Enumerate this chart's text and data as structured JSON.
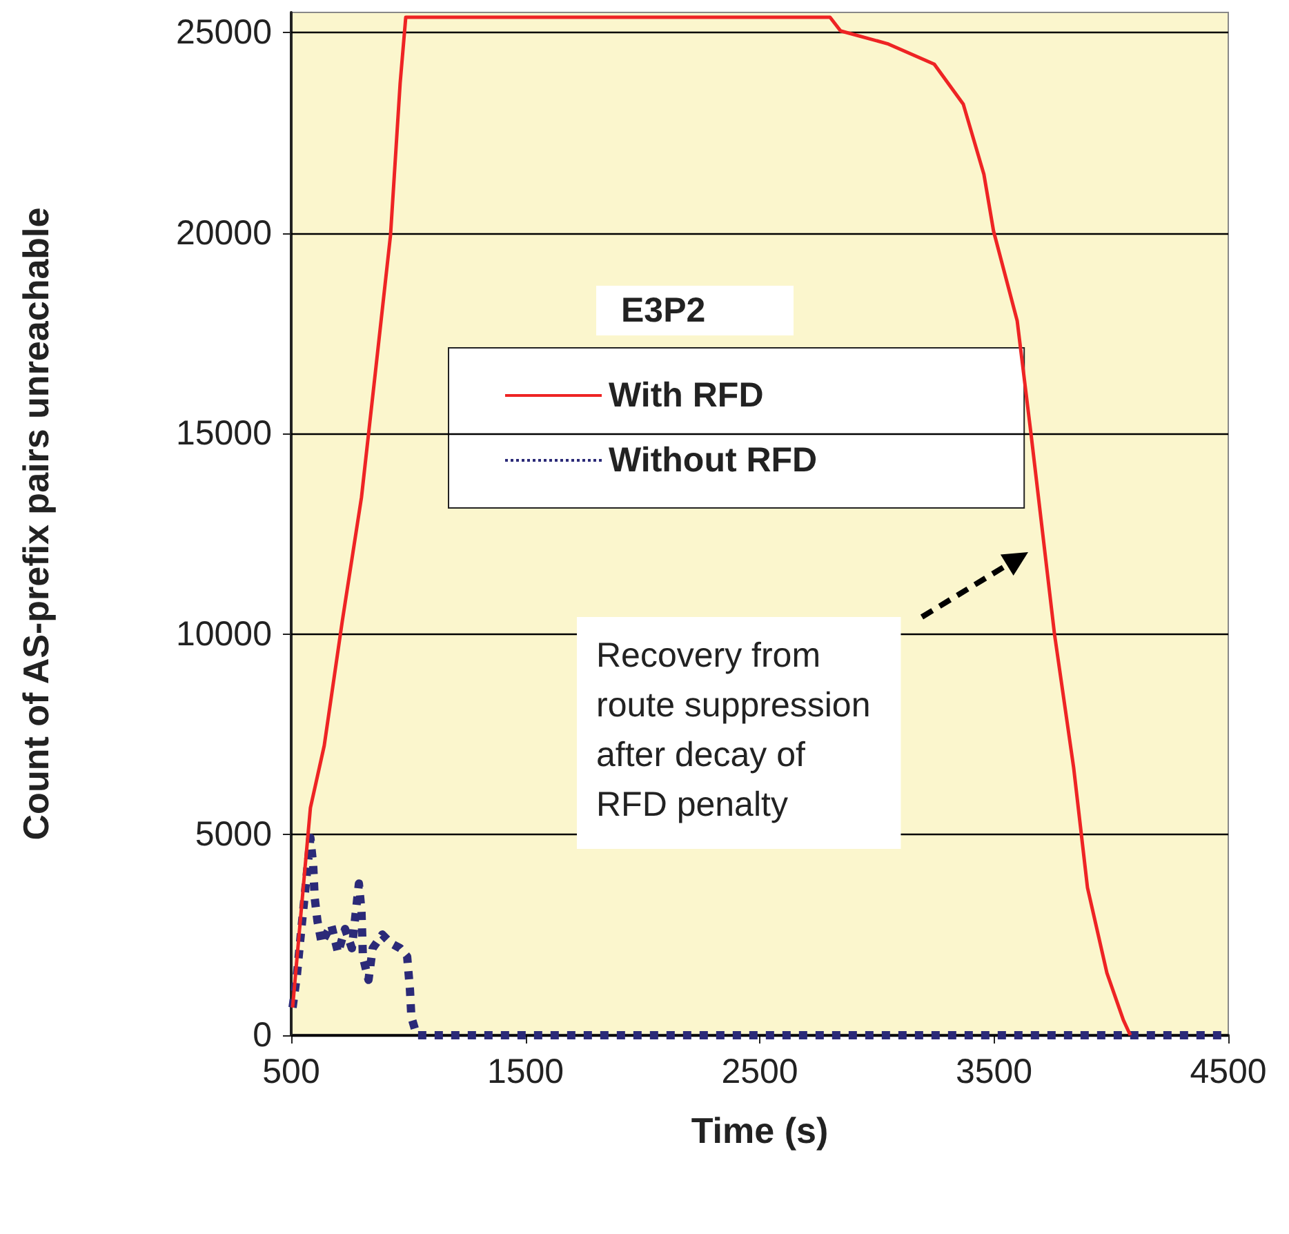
{
  "chart_data": {
    "type": "line",
    "xlabel": "Time (s)",
    "ylabel": "Count of AS-prefix pairs unreachable",
    "legend_title": "E3P2",
    "xlim": [
      500,
      4500
    ],
    "xticks": [
      500,
      1500,
      2500,
      3500,
      4500
    ],
    "ylim": [
      0,
      25500
    ],
    "yticks": [
      0,
      5000,
      10000,
      15000,
      20000,
      25000
    ],
    "grid": "y",
    "legend": "top",
    "marker": "none",
    "series": [
      {
        "name": "With RFD",
        "color": "#ee2424",
        "line_style": "solid",
        "x": [
          506,
          553,
          582,
          641,
          718,
          800,
          859,
          924,
          965,
          989,
          2800,
          2845,
          3045,
          3245,
          3369,
          3457,
          3498,
          3599,
          3658,
          3758,
          3840,
          3899,
          3982,
          4052,
          4082
        ],
        "values": [
          690,
          3780,
          5670,
          7220,
          10320,
          13410,
          16510,
          19950,
          23730,
          25380,
          25380,
          25040,
          24720,
          24210,
          23210,
          21460,
          20050,
          17810,
          14990,
          10010,
          6670,
          3680,
          1550,
          380,
          0
        ]
      },
      {
        "name": "Without RFD",
        "color": "#2b2a78",
        "line_style": "dotted",
        "x": [
          506,
          524,
          541,
          582,
          594,
          600,
          612,
          630,
          671,
          700,
          730,
          759,
          789,
          800,
          806,
          830,
          848,
          889,
          924,
          965,
          995,
          1007,
          1013,
          1036,
          4500
        ],
        "values": [
          690,
          1480,
          2510,
          4920,
          4230,
          3440,
          2850,
          2300,
          2750,
          2060,
          2650,
          2170,
          3780,
          3100,
          1960,
          1380,
          2170,
          2510,
          2300,
          2170,
          1960,
          1130,
          450,
          0,
          0
        ]
      }
    ],
    "annotations": [
      "Recovery from\nroute suppression\nafter decay of\nRFD penalty"
    ]
  }
}
